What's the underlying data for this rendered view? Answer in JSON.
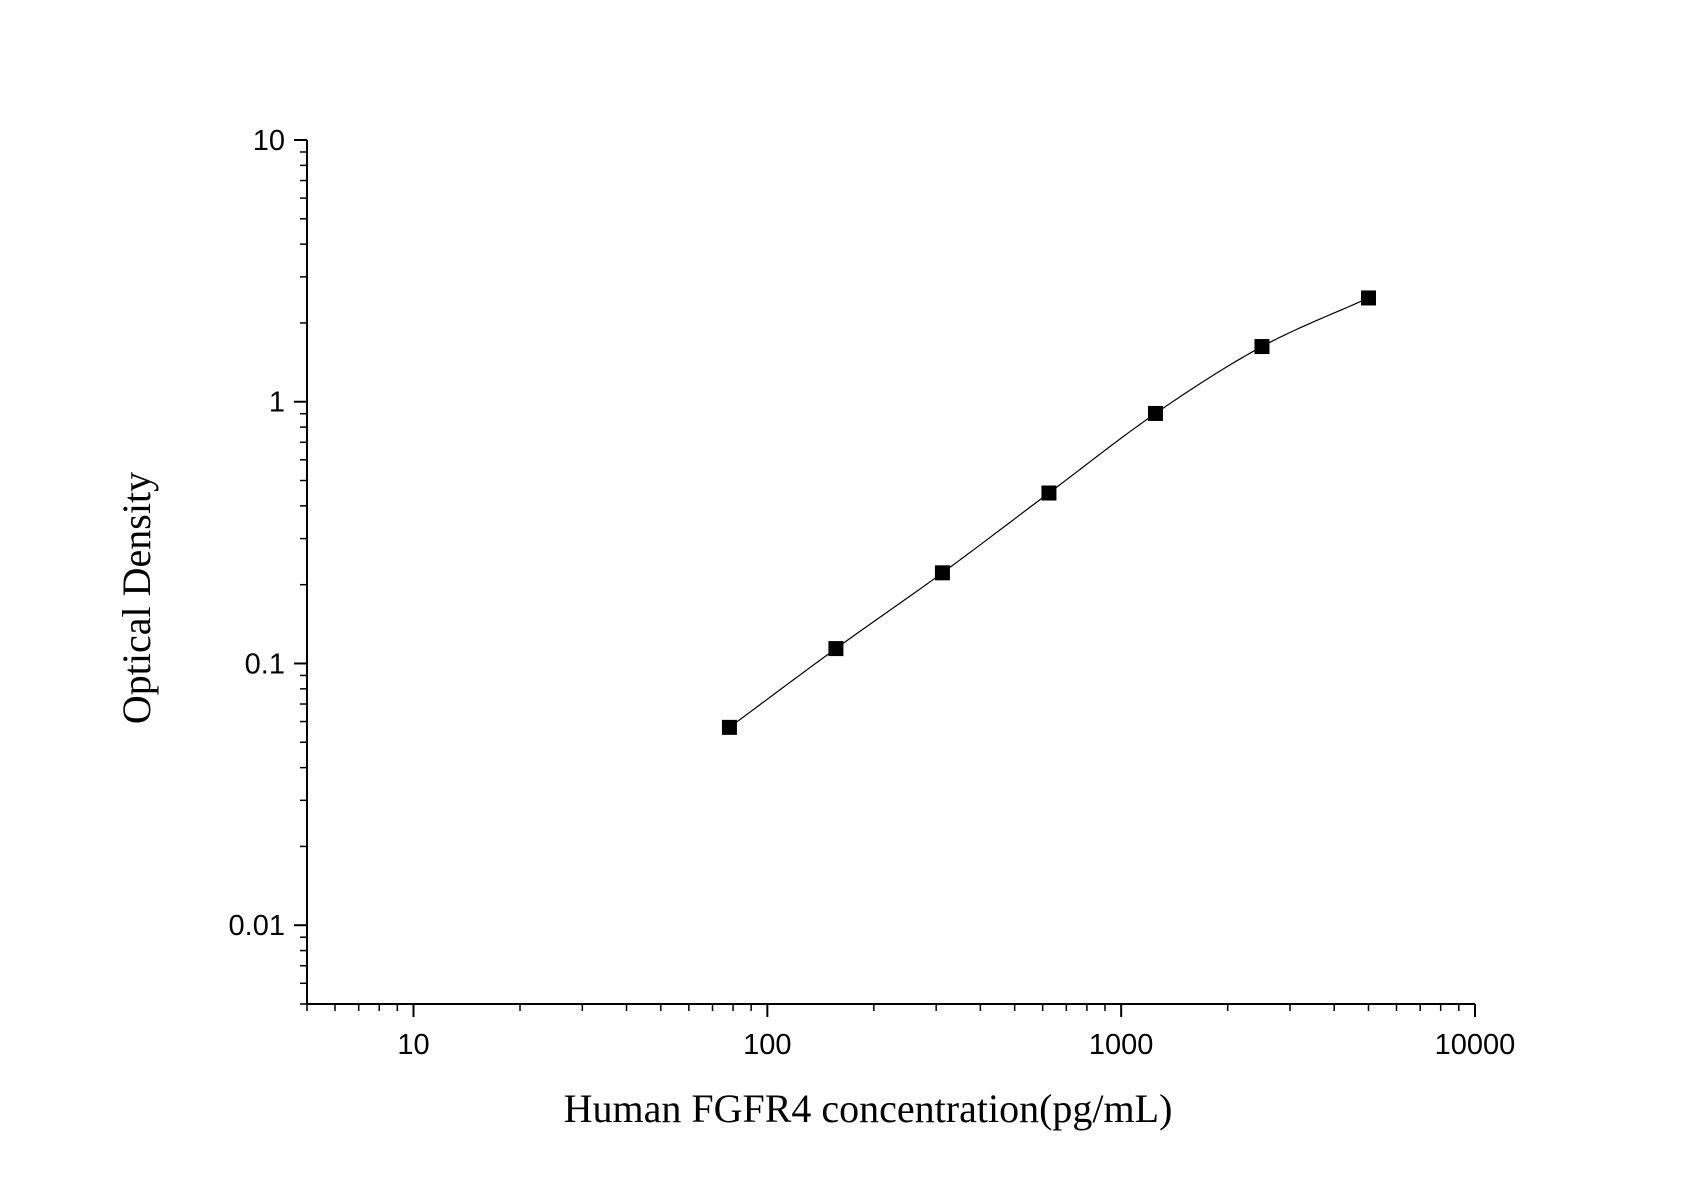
{
  "chart_data": {
    "type": "scatter",
    "title": "",
    "xlabel": "Human FGFR4 concentration(pg/mL)",
    "ylabel": "Optical Density",
    "xscale": "log",
    "yscale": "log",
    "xlim": [
      5,
      10000
    ],
    "ylim": [
      0.005,
      10
    ],
    "x_ticks": [
      {
        "value": 10,
        "label": "10"
      },
      {
        "value": 100,
        "label": "100"
      },
      {
        "value": 1000,
        "label": "1000"
      },
      {
        "value": 10000,
        "label": "10000"
      }
    ],
    "y_ticks": [
      {
        "value": 0.01,
        "label": "0.01"
      },
      {
        "value": 0.1,
        "label": "0.1"
      },
      {
        "value": 1,
        "label": "1"
      },
      {
        "value": 10,
        "label": "10"
      }
    ],
    "grid": false,
    "legend": "none",
    "marker": "square",
    "color": "#000000",
    "series": [
      {
        "x": [
          78.13,
          156.25,
          312.5,
          625,
          1250,
          2500,
          5000
        ],
        "y": [
          0.057,
          0.114,
          0.222,
          0.448,
          0.902,
          1.625,
          2.492
        ]
      }
    ],
    "fit_curve": true
  }
}
